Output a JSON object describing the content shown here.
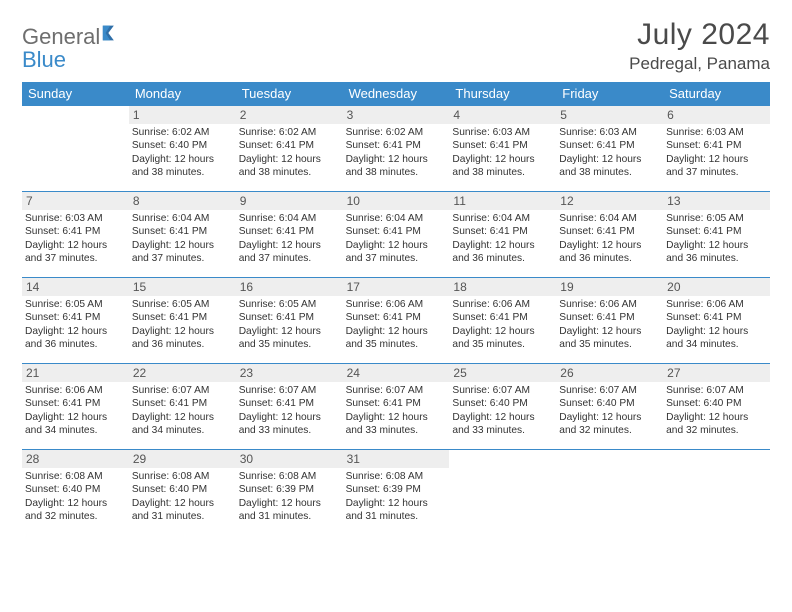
{
  "logo": {
    "text1": "General",
    "text2": "Blue"
  },
  "title": {
    "month": "July 2024",
    "location": "Pedregal, Panama"
  },
  "colors": {
    "header_bg": "#3a8ac9",
    "header_fg": "#ffffff",
    "daynum_bg": "#eeeeee",
    "border": "#3a8ac9",
    "text": "#333333",
    "logo_gray": "#6e6e6e",
    "logo_blue": "#3a8ac9"
  },
  "dow": [
    "Sunday",
    "Monday",
    "Tuesday",
    "Wednesday",
    "Thursday",
    "Friday",
    "Saturday"
  ],
  "weeks": [
    [
      {
        "n": "",
        "sunrise": "",
        "sunset": "",
        "daylight": ""
      },
      {
        "n": "1",
        "sunrise": "Sunrise: 6:02 AM",
        "sunset": "Sunset: 6:40 PM",
        "daylight": "Daylight: 12 hours and 38 minutes."
      },
      {
        "n": "2",
        "sunrise": "Sunrise: 6:02 AM",
        "sunset": "Sunset: 6:41 PM",
        "daylight": "Daylight: 12 hours and 38 minutes."
      },
      {
        "n": "3",
        "sunrise": "Sunrise: 6:02 AM",
        "sunset": "Sunset: 6:41 PM",
        "daylight": "Daylight: 12 hours and 38 minutes."
      },
      {
        "n": "4",
        "sunrise": "Sunrise: 6:03 AM",
        "sunset": "Sunset: 6:41 PM",
        "daylight": "Daylight: 12 hours and 38 minutes."
      },
      {
        "n": "5",
        "sunrise": "Sunrise: 6:03 AM",
        "sunset": "Sunset: 6:41 PM",
        "daylight": "Daylight: 12 hours and 38 minutes."
      },
      {
        "n": "6",
        "sunrise": "Sunrise: 6:03 AM",
        "sunset": "Sunset: 6:41 PM",
        "daylight": "Daylight: 12 hours and 37 minutes."
      }
    ],
    [
      {
        "n": "7",
        "sunrise": "Sunrise: 6:03 AM",
        "sunset": "Sunset: 6:41 PM",
        "daylight": "Daylight: 12 hours and 37 minutes."
      },
      {
        "n": "8",
        "sunrise": "Sunrise: 6:04 AM",
        "sunset": "Sunset: 6:41 PM",
        "daylight": "Daylight: 12 hours and 37 minutes."
      },
      {
        "n": "9",
        "sunrise": "Sunrise: 6:04 AM",
        "sunset": "Sunset: 6:41 PM",
        "daylight": "Daylight: 12 hours and 37 minutes."
      },
      {
        "n": "10",
        "sunrise": "Sunrise: 6:04 AM",
        "sunset": "Sunset: 6:41 PM",
        "daylight": "Daylight: 12 hours and 37 minutes."
      },
      {
        "n": "11",
        "sunrise": "Sunrise: 6:04 AM",
        "sunset": "Sunset: 6:41 PM",
        "daylight": "Daylight: 12 hours and 36 minutes."
      },
      {
        "n": "12",
        "sunrise": "Sunrise: 6:04 AM",
        "sunset": "Sunset: 6:41 PM",
        "daylight": "Daylight: 12 hours and 36 minutes."
      },
      {
        "n": "13",
        "sunrise": "Sunrise: 6:05 AM",
        "sunset": "Sunset: 6:41 PM",
        "daylight": "Daylight: 12 hours and 36 minutes."
      }
    ],
    [
      {
        "n": "14",
        "sunrise": "Sunrise: 6:05 AM",
        "sunset": "Sunset: 6:41 PM",
        "daylight": "Daylight: 12 hours and 36 minutes."
      },
      {
        "n": "15",
        "sunrise": "Sunrise: 6:05 AM",
        "sunset": "Sunset: 6:41 PM",
        "daylight": "Daylight: 12 hours and 36 minutes."
      },
      {
        "n": "16",
        "sunrise": "Sunrise: 6:05 AM",
        "sunset": "Sunset: 6:41 PM",
        "daylight": "Daylight: 12 hours and 35 minutes."
      },
      {
        "n": "17",
        "sunrise": "Sunrise: 6:06 AM",
        "sunset": "Sunset: 6:41 PM",
        "daylight": "Daylight: 12 hours and 35 minutes."
      },
      {
        "n": "18",
        "sunrise": "Sunrise: 6:06 AM",
        "sunset": "Sunset: 6:41 PM",
        "daylight": "Daylight: 12 hours and 35 minutes."
      },
      {
        "n": "19",
        "sunrise": "Sunrise: 6:06 AM",
        "sunset": "Sunset: 6:41 PM",
        "daylight": "Daylight: 12 hours and 35 minutes."
      },
      {
        "n": "20",
        "sunrise": "Sunrise: 6:06 AM",
        "sunset": "Sunset: 6:41 PM",
        "daylight": "Daylight: 12 hours and 34 minutes."
      }
    ],
    [
      {
        "n": "21",
        "sunrise": "Sunrise: 6:06 AM",
        "sunset": "Sunset: 6:41 PM",
        "daylight": "Daylight: 12 hours and 34 minutes."
      },
      {
        "n": "22",
        "sunrise": "Sunrise: 6:07 AM",
        "sunset": "Sunset: 6:41 PM",
        "daylight": "Daylight: 12 hours and 34 minutes."
      },
      {
        "n": "23",
        "sunrise": "Sunrise: 6:07 AM",
        "sunset": "Sunset: 6:41 PM",
        "daylight": "Daylight: 12 hours and 33 minutes."
      },
      {
        "n": "24",
        "sunrise": "Sunrise: 6:07 AM",
        "sunset": "Sunset: 6:41 PM",
        "daylight": "Daylight: 12 hours and 33 minutes."
      },
      {
        "n": "25",
        "sunrise": "Sunrise: 6:07 AM",
        "sunset": "Sunset: 6:40 PM",
        "daylight": "Daylight: 12 hours and 33 minutes."
      },
      {
        "n": "26",
        "sunrise": "Sunrise: 6:07 AM",
        "sunset": "Sunset: 6:40 PM",
        "daylight": "Daylight: 12 hours and 32 minutes."
      },
      {
        "n": "27",
        "sunrise": "Sunrise: 6:07 AM",
        "sunset": "Sunset: 6:40 PM",
        "daylight": "Daylight: 12 hours and 32 minutes."
      }
    ],
    [
      {
        "n": "28",
        "sunrise": "Sunrise: 6:08 AM",
        "sunset": "Sunset: 6:40 PM",
        "daylight": "Daylight: 12 hours and 32 minutes."
      },
      {
        "n": "29",
        "sunrise": "Sunrise: 6:08 AM",
        "sunset": "Sunset: 6:40 PM",
        "daylight": "Daylight: 12 hours and 31 minutes."
      },
      {
        "n": "30",
        "sunrise": "Sunrise: 6:08 AM",
        "sunset": "Sunset: 6:39 PM",
        "daylight": "Daylight: 12 hours and 31 minutes."
      },
      {
        "n": "31",
        "sunrise": "Sunrise: 6:08 AM",
        "sunset": "Sunset: 6:39 PM",
        "daylight": "Daylight: 12 hours and 31 minutes."
      },
      {
        "n": "",
        "sunrise": "",
        "sunset": "",
        "daylight": ""
      },
      {
        "n": "",
        "sunrise": "",
        "sunset": "",
        "daylight": ""
      },
      {
        "n": "",
        "sunrise": "",
        "sunset": "",
        "daylight": ""
      }
    ]
  ]
}
